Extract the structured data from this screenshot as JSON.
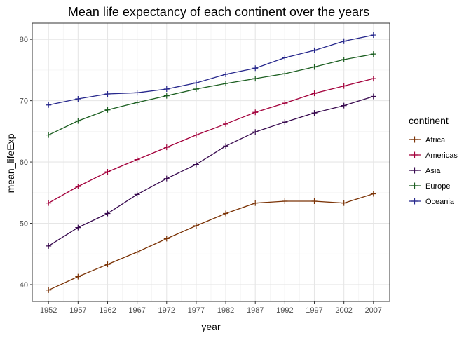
{
  "chart_data": {
    "type": "line",
    "title": "Mean life expectancy of each continent over the years",
    "xlabel": "year",
    "ylabel": "mean_lifeExp",
    "x": [
      1952,
      1957,
      1962,
      1967,
      1972,
      1977,
      1982,
      1987,
      1992,
      1997,
      2002,
      2007
    ],
    "xlim": [
      1949.25,
      2009.75
    ],
    "ylim": [
      37.25,
      82.65
    ],
    "yticks": [
      40,
      50,
      60,
      70,
      80
    ],
    "grid": true,
    "markers": "plus",
    "legend": {
      "title": "continent",
      "position": "right"
    },
    "series": [
      {
        "name": "Africa",
        "color": "#7b3306",
        "values": [
          39.1,
          41.3,
          43.3,
          45.3,
          47.5,
          49.6,
          51.6,
          53.3,
          53.6,
          53.6,
          53.3,
          54.8
        ]
      },
      {
        "name": "Americas",
        "color": "#a3003b",
        "values": [
          53.3,
          56.0,
          58.4,
          60.4,
          62.4,
          64.4,
          66.2,
          68.1,
          69.6,
          71.2,
          72.4,
          73.6
        ]
      },
      {
        "name": "Asia",
        "color": "#380a4f",
        "values": [
          46.3,
          49.3,
          51.6,
          54.7,
          57.3,
          59.6,
          62.6,
          64.9,
          66.5,
          68.0,
          69.2,
          70.7
        ]
      },
      {
        "name": "Europe",
        "color": "#1b5e20",
        "values": [
          64.4,
          66.7,
          68.5,
          69.7,
          70.8,
          71.9,
          72.8,
          73.6,
          74.4,
          75.5,
          76.7,
          77.6
        ]
      },
      {
        "name": "Oceania",
        "color": "#26278c",
        "values": [
          69.3,
          70.3,
          71.1,
          71.3,
          71.9,
          72.9,
          74.3,
          75.3,
          77.0,
          78.2,
          79.7,
          80.7
        ]
      }
    ]
  }
}
